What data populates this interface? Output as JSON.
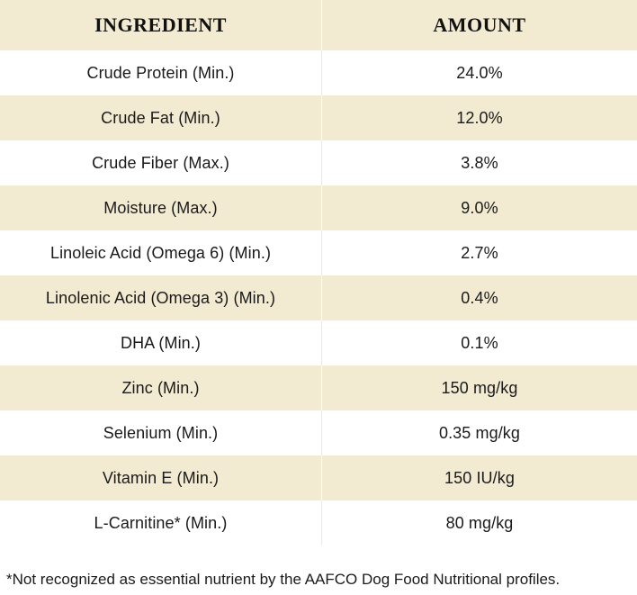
{
  "table": {
    "headers": [
      "INGREDIENT",
      "AMOUNT"
    ],
    "rows": [
      {
        "ingredient": "Crude Protein (Min.)",
        "amount": "24.0%"
      },
      {
        "ingredient": "Crude Fat (Min.)",
        "amount": "12.0%"
      },
      {
        "ingredient": "Crude Fiber (Max.)",
        "amount": "3.8%"
      },
      {
        "ingredient": "Moisture (Max.)",
        "amount": "9.0%"
      },
      {
        "ingredient": "Linoleic Acid (Omega 6) (Min.)",
        "amount": "2.7%"
      },
      {
        "ingredient": "Linolenic Acid (Omega 3) (Min.)",
        "amount": "0.4%"
      },
      {
        "ingredient": "DHA (Min.)",
        "amount": "0.1%"
      },
      {
        "ingredient": "Zinc (Min.)",
        "amount": "150 mg/kg"
      },
      {
        "ingredient": "Selenium (Min.)",
        "amount": "0.35 mg/kg"
      },
      {
        "ingredient": "Vitamin E (Min.)",
        "amount": "150 IU/kg"
      },
      {
        "ingredient": "L-Carnitine* (Min.)",
        "amount": "80 mg/kg"
      }
    ]
  },
  "footnote": "*Not recognized as essential nutrient by the AAFCO Dog Food Nutritional profiles.",
  "colors": {
    "shaded_row": "#f3ead2",
    "plain_row": "#ffffff"
  }
}
